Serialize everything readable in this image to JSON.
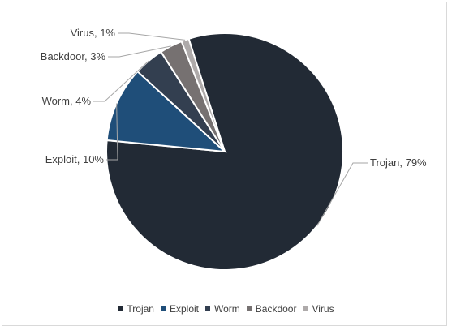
{
  "chart_data": {
    "type": "pie",
    "title": "",
    "slices": [
      {
        "name": "Trojan",
        "value": 79,
        "label": "Trojan, 79%",
        "color": "#222a35"
      },
      {
        "name": "Exploit",
        "value": 10,
        "label": "Exploit, 10%",
        "color": "#1f4e79"
      },
      {
        "name": "Worm",
        "value": 4,
        "label": "Worm, 4%",
        "color": "#333f50"
      },
      {
        "name": "Backdoor",
        "value": 3,
        "label": "Backdoor, 3%",
        "color": "#767171"
      },
      {
        "name": "Virus",
        "value": 1,
        "label": "Virus, 1%",
        "color": "#aeaaaa"
      }
    ],
    "legend_position": "bottom"
  }
}
